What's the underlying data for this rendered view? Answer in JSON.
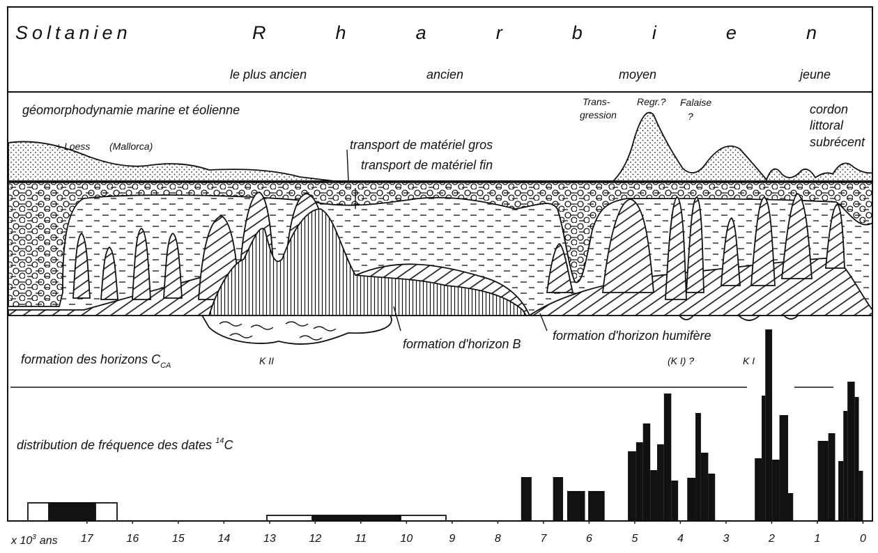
{
  "header": {
    "period": "Soltanien",
    "stage": "Rharbien",
    "substages": [
      "le plus ancien",
      "ancien",
      "moyen",
      "jeune"
    ]
  },
  "geomorphology": {
    "title": "géomorphodynamie marine et éolienne",
    "loess": "+ Loess",
    "loess_site": "(Mallorca)",
    "coarse": "transport de matériel gros",
    "fine": "transport de matériel fin",
    "transgression": [
      "Trans-",
      "gression"
    ],
    "regression": "Regr.?",
    "cliff": [
      "Falaise",
      "?"
    ],
    "beach_ridge": [
      "cordon",
      "littoral",
      "subrécent"
    ]
  },
  "soils": {
    "calcic": "formation des horizons C",
    "calcic_sub": "CA",
    "k2": "K II",
    "horizon_b": "formation d'horizon B",
    "humic": "formation d'horizon humifère",
    "k1_query": "(K I) ?",
    "k1": "K I"
  },
  "histogram": {
    "title": "distribution de fréquence des dates",
    "isotope": "14",
    "element": "C",
    "unit_prefix": "x 10",
    "unit_exp": "3",
    "unit_suffix": "ans",
    "xlim": [
      18.6,
      -0.1
    ],
    "xticks": [
      17,
      16,
      15,
      14,
      13,
      12,
      11,
      10,
      9,
      8,
      7,
      6,
      5,
      4,
      3,
      2,
      1,
      0
    ],
    "bars": [
      {
        "from": 7.49,
        "to": 7.26,
        "value": 6.3
      },
      {
        "from": 6.79,
        "to": 6.57,
        "value": 6.3
      },
      {
        "from": 6.48,
        "to": 6.09,
        "value": 4.3
      },
      {
        "from": 6.02,
        "to": 5.66,
        "value": 4.3
      },
      {
        "from": 5.15,
        "to": 4.97,
        "value": 10
      },
      {
        "from": 4.97,
        "to": 4.82,
        "value": 11.3
      },
      {
        "from": 4.82,
        "to": 4.66,
        "value": 14
      },
      {
        "from": 4.66,
        "to": 4.51,
        "value": 7.3
      },
      {
        "from": 4.51,
        "to": 4.36,
        "value": 11
      },
      {
        "from": 4.36,
        "to": 4.2,
        "value": 18.3
      },
      {
        "from": 4.2,
        "to": 4.05,
        "value": 5.8
      },
      {
        "from": 3.85,
        "to": 3.67,
        "value": 6.2
      },
      {
        "from": 3.67,
        "to": 3.55,
        "value": 15.5
      },
      {
        "from": 3.55,
        "to": 3.39,
        "value": 9.8
      },
      {
        "from": 3.39,
        "to": 3.24,
        "value": 6.8
      },
      {
        "from": 2.37,
        "to": 2.22,
        "value": 9
      },
      {
        "from": 2.22,
        "to": 2.14,
        "value": 18
      },
      {
        "from": 2.14,
        "to": 1.99,
        "value": 27.5
      },
      {
        "from": 1.99,
        "to": 1.83,
        "value": 8.8
      },
      {
        "from": 1.83,
        "to": 1.64,
        "value": 15.2
      },
      {
        "from": 1.64,
        "to": 1.53,
        "value": 4
      },
      {
        "from": 0.99,
        "to": 0.76,
        "value": 11.5
      },
      {
        "from": 0.76,
        "to": 0.61,
        "value": 12.6
      },
      {
        "from": 0.54,
        "to": 0.43,
        "value": 8.6
      },
      {
        "from": 0.43,
        "to": 0.34,
        "value": 15.8
      },
      {
        "from": 0.34,
        "to": 0.18,
        "value": 20
      },
      {
        "from": 0.18,
        "to": 0.09,
        "value": 17.8
      },
      {
        "from": 0.09,
        "to": 0,
        "value": 7.2
      }
    ]
  }
}
